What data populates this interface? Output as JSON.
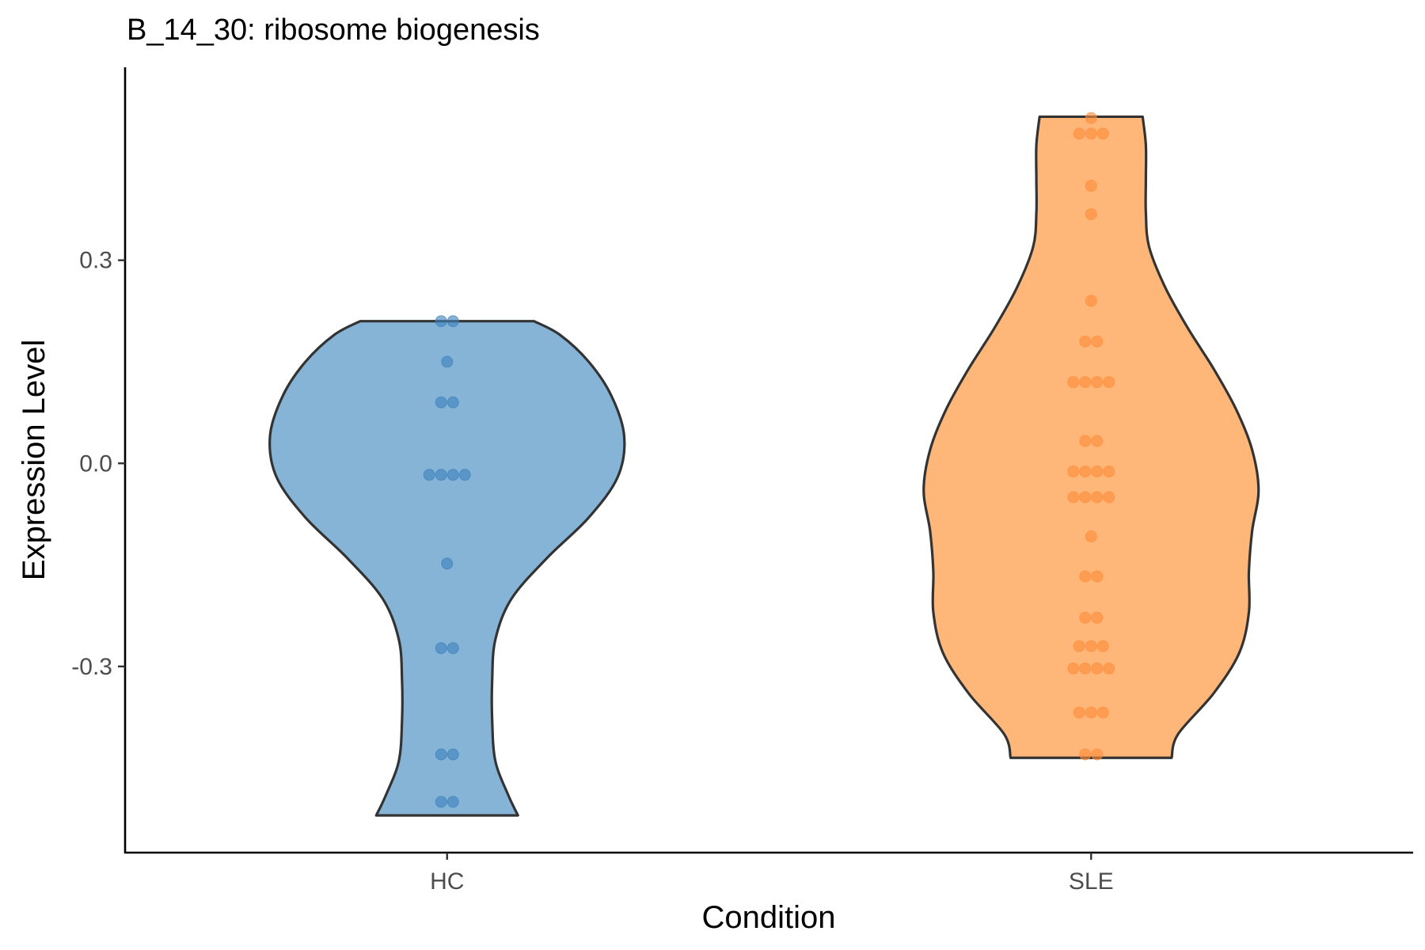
{
  "chart_data": {
    "type": "violin",
    "title": "B_14_30: ribosome biogenesis",
    "xlabel": "Condition",
    "ylabel": "Expression Level",
    "categories": [
      "HC",
      "SLE"
    ],
    "ylim": [
      -0.575,
      0.585
    ],
    "yticks": [
      {
        "value": -0.3,
        "label": "-0.3"
      },
      {
        "value": 0.0,
        "label": "0.0"
      },
      {
        "value": 0.3,
        "label": "0.3"
      }
    ],
    "grid": false,
    "legend": "none",
    "series": [
      {
        "category": "HC",
        "fill": "#86b4d7",
        "point_color": "#3f82bd",
        "range": [
          -0.52,
          0.21
        ],
        "density": [
          {
            "y": 0.21,
            "w": 0.27
          },
          {
            "y": 0.19,
            "w": 0.35
          },
          {
            "y": 0.15,
            "w": 0.44
          },
          {
            "y": 0.1,
            "w": 0.51
          },
          {
            "y": 0.04,
            "w": 0.55
          },
          {
            "y": -0.02,
            "w": 0.53
          },
          {
            "y": -0.08,
            "w": 0.44
          },
          {
            "y": -0.14,
            "w": 0.31
          },
          {
            "y": -0.2,
            "w": 0.2
          },
          {
            "y": -0.26,
            "w": 0.15
          },
          {
            "y": -0.32,
            "w": 0.14
          },
          {
            "y": -0.38,
            "w": 0.14
          },
          {
            "y": -0.44,
            "w": 0.15
          },
          {
            "y": -0.49,
            "w": 0.19
          },
          {
            "y": -0.52,
            "w": 0.22
          }
        ],
        "points": [
          {
            "y": 0.21,
            "n": 2
          },
          {
            "y": 0.15,
            "n": 1
          },
          {
            "y": 0.09,
            "n": 2
          },
          {
            "y": -0.017,
            "n": 4
          },
          {
            "y": -0.148,
            "n": 1
          },
          {
            "y": -0.273,
            "n": 2
          },
          {
            "y": -0.43,
            "n": 2
          },
          {
            "y": -0.5,
            "n": 2
          }
        ]
      },
      {
        "category": "SLE",
        "fill": "#feb778",
        "point_color": "#fd8d3c",
        "range": [
          -0.435,
          0.512
        ],
        "density": [
          {
            "y": 0.512,
            "w": 0.16
          },
          {
            "y": 0.47,
            "w": 0.17
          },
          {
            "y": 0.42,
            "w": 0.17
          },
          {
            "y": 0.37,
            "w": 0.17
          },
          {
            "y": 0.32,
            "w": 0.18
          },
          {
            "y": 0.26,
            "w": 0.23
          },
          {
            "y": 0.2,
            "w": 0.3
          },
          {
            "y": 0.14,
            "w": 0.38
          },
          {
            "y": 0.08,
            "w": 0.45
          },
          {
            "y": 0.02,
            "w": 0.5
          },
          {
            "y": -0.04,
            "w": 0.52
          },
          {
            "y": -0.1,
            "w": 0.5
          },
          {
            "y": -0.16,
            "w": 0.49
          },
          {
            "y": -0.22,
            "w": 0.49
          },
          {
            "y": -0.28,
            "w": 0.46
          },
          {
            "y": -0.34,
            "w": 0.38
          },
          {
            "y": -0.4,
            "w": 0.27
          },
          {
            "y": -0.435,
            "w": 0.25
          }
        ],
        "points": [
          {
            "y": 0.51,
            "n": 1
          },
          {
            "y": 0.487,
            "n": 3
          },
          {
            "y": 0.41,
            "n": 1
          },
          {
            "y": 0.368,
            "n": 1
          },
          {
            "y": 0.24,
            "n": 1
          },
          {
            "y": 0.18,
            "n": 2
          },
          {
            "y": 0.12,
            "n": 4
          },
          {
            "y": 0.033,
            "n": 2
          },
          {
            "y": -0.012,
            "n": 4
          },
          {
            "y": -0.05,
            "n": 4
          },
          {
            "y": -0.108,
            "n": 1
          },
          {
            "y": -0.167,
            "n": 2
          },
          {
            "y": -0.228,
            "n": 2
          },
          {
            "y": -0.27,
            "n": 3
          },
          {
            "y": -0.303,
            "n": 4
          },
          {
            "y": -0.368,
            "n": 3
          },
          {
            "y": -0.43,
            "n": 2
          }
        ]
      }
    ]
  }
}
